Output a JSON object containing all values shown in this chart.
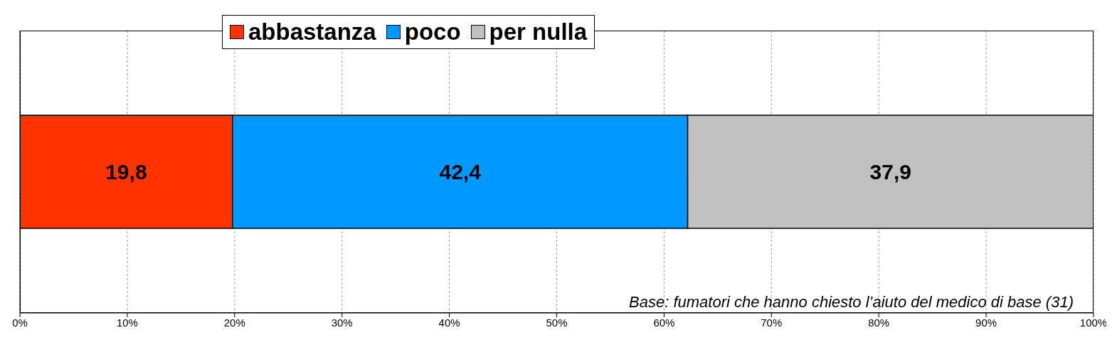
{
  "chart_data": {
    "type": "bar",
    "orientation": "horizontal",
    "stacked": true,
    "categories": [
      null
    ],
    "series": [
      {
        "name": "abbastanza",
        "color": "#ff3300",
        "values": [
          19.8
        ],
        "value_labels": [
          "19,8"
        ]
      },
      {
        "name": "poco",
        "color": "#0099ff",
        "values": [
          42.4
        ],
        "value_labels": [
          "42,4"
        ]
      },
      {
        "name": "per nulla",
        "color": "#c0c0c0",
        "values": [
          37.9
        ],
        "value_labels": [
          "37,9"
        ]
      }
    ],
    "xlim": [
      0,
      100
    ],
    "xticks": [
      {
        "value": 0,
        "label": "0%"
      },
      {
        "value": 10,
        "label": "10%"
      },
      {
        "value": 20,
        "label": "20%"
      },
      {
        "value": 30,
        "label": "30%"
      },
      {
        "value": 40,
        "label": "40%"
      },
      {
        "value": 50,
        "label": "50%"
      },
      {
        "value": 60,
        "label": "60%"
      },
      {
        "value": 70,
        "label": "70%"
      },
      {
        "value": 80,
        "label": "80%"
      },
      {
        "value": 90,
        "label": "90%"
      },
      {
        "value": 100,
        "label": "100%"
      }
    ],
    "grid": "x",
    "legend": "top",
    "annotations": [
      "Base: fumatori che hanno chiesto l’aiuto del medico di base (31)"
    ]
  }
}
